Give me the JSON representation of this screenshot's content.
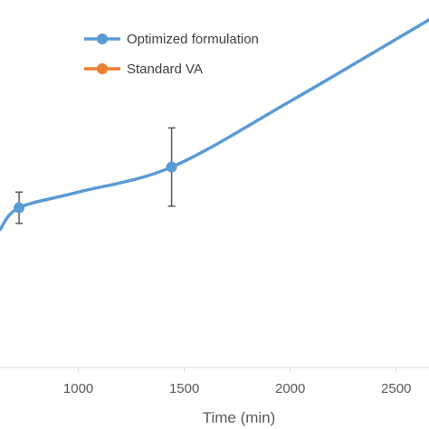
{
  "chart_data": {
    "type": "line",
    "xlabel": "Time (min)",
    "ylabel": "",
    "title": "",
    "x_ticks": [
      "1000",
      "1500",
      "2000",
      "2500"
    ],
    "xlim": [
      630,
      2655
    ],
    "ylim": [
      0,
      1
    ],
    "grid": false,
    "legend_position": "top-center",
    "series": [
      {
        "name": "Optimized formulation",
        "color": "#5B9BD5",
        "x": [
          630,
          720,
          1000,
          1440,
          2000,
          2655
        ],
        "y": [
          0.44,
          0.51,
          0.56,
          0.64,
          0.85,
          1.11
        ],
        "markers": [
          {
            "x": 720,
            "y": 0.51,
            "err": 0.05
          },
          {
            "x": 1440,
            "y": 0.64,
            "err": 0.125
          }
        ]
      },
      {
        "name": "Standard VA",
        "color": "#ED7D31",
        "x": [],
        "y": [],
        "markers": []
      }
    ]
  }
}
